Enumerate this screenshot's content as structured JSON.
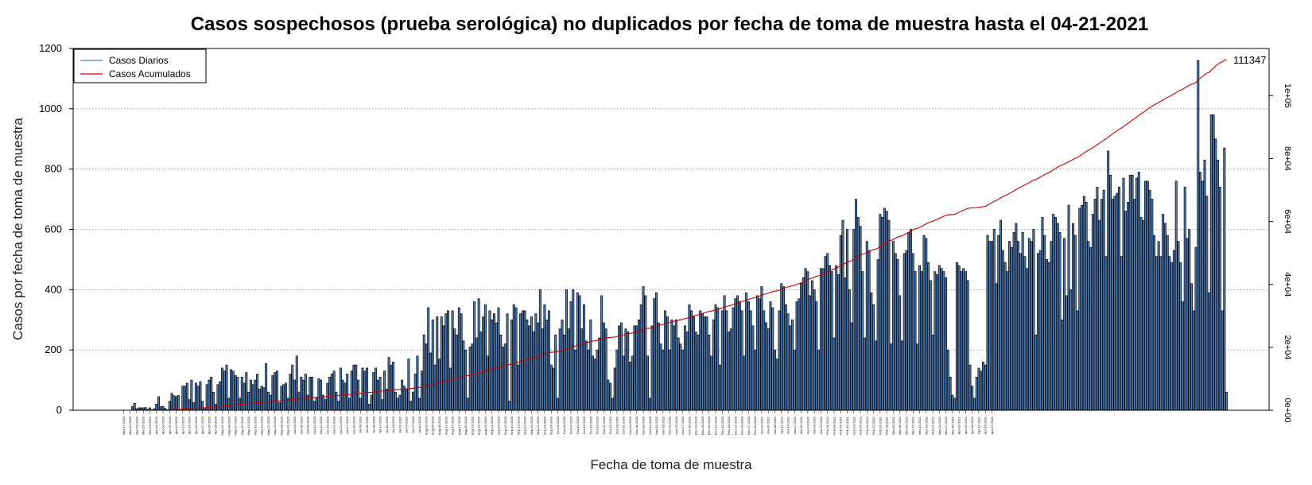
{
  "chart_data": {
    "type": "bar",
    "title": "Casos sospechosos (prueba serológica) no duplicados por fecha de toma de muestra hasta el 04-21-2021",
    "xlabel": "Fecha de toma de muestra",
    "ylabel": "Casos por fecha de toma de muestra",
    "ylim": [
      0,
      1200
    ],
    "yticks": [
      "0",
      "200",
      "400",
      "600",
      "800",
      "1000",
      "1200"
    ],
    "ylim_right": [
      0,
      115000
    ],
    "yticks_right": [
      "0e+00",
      "2e+04",
      "4e+04",
      "6e+04",
      "8e+04",
      "1e+05"
    ],
    "grid": "horizontal dotted",
    "legend_position": "top-left",
    "x_start": "2020-03-17",
    "x_end": "2021-04-19",
    "x_tick_labels": [
      "Mar-17-2020",
      "Mar-20-2020",
      "Mar-23-2020",
      "Mar-26-2020",
      "Mar-29-2020",
      "Apr-01-2020",
      "Apr-04-2020",
      "Apr-07-2020",
      "Apr-10-2020",
      "Apr-13-2020",
      "Apr-16-2020",
      "Apr-19-2020",
      "Apr-22-2020",
      "Apr-25-2020",
      "Apr-28-2020",
      "May-01-2020",
      "May-04-2020",
      "May-07-2020",
      "May-10-2020",
      "May-13-2020",
      "May-16-2020",
      "May-19-2020",
      "May-22-2020",
      "May-25-2020",
      "May-28-2020",
      "May-31-2020",
      "Jun-03-2020",
      "Jun-06-2020",
      "Jun-09-2020",
      "Jun-12-2020",
      "Jun-15-2020",
      "Jun-18-2020",
      "Jun-21-2020",
      "Jun-24-2020",
      "Jun-27-2020",
      "Jun-30-2020",
      "Jul-03-2020",
      "Jul-06-2020",
      "Jul-09-2020",
      "Jul-12-2020",
      "Jul-15-2020",
      "Jul-18-2020",
      "Jul-21-2020",
      "Jul-24-2020",
      "Jul-27-2020",
      "Jul-30-2020",
      "Aug-02-2020",
      "Aug-05-2020",
      "Aug-08-2020",
      "Aug-11-2020",
      "Aug-14-2020",
      "Aug-17-2020",
      "Aug-20-2020",
      "Aug-23-2020",
      "Aug-26-2020",
      "Aug-29-2020",
      "Sep-01-2020",
      "Sep-04-2020",
      "Sep-07-2020",
      "Sep-10-2020",
      "Sep-13-2020",
      "Sep-16-2020",
      "Sep-19-2020",
      "Sep-22-2020",
      "Sep-25-2020",
      "Sep-28-2020",
      "Oct-01-2020",
      "Oct-04-2020",
      "Oct-07-2020",
      "Oct-10-2020",
      "Oct-13-2020",
      "Oct-16-2020",
      "Oct-19-2020",
      "Oct-22-2020",
      "Oct-25-2020",
      "Oct-28-2020",
      "Oct-31-2020",
      "Nov-03-2020",
      "Nov-06-2020",
      "Nov-09-2020",
      "Nov-12-2020",
      "Nov-15-2020",
      "Nov-18-2020",
      "Nov-21-2020",
      "Nov-24-2020",
      "Nov-27-2020",
      "Nov-30-2020",
      "Dec-03-2020",
      "Dec-06-2020",
      "Dec-09-2020",
      "Dec-12-2020",
      "Dec-15-2020",
      "Dec-18-2020",
      "Dec-21-2020",
      "Dec-24-2020",
      "Dec-27-2020",
      "Dec-30-2020",
      "Jan-02-2021",
      "Jan-05-2021",
      "Jan-08-2021",
      "Jan-11-2021",
      "Jan-14-2021",
      "Jan-17-2021",
      "Jan-20-2021",
      "Jan-23-2021",
      "Jan-26-2021",
      "Jan-29-2021",
      "Feb-01-2021",
      "Feb-04-2021",
      "Feb-07-2021",
      "Feb-10-2021",
      "Feb-13-2021",
      "Feb-16-2021",
      "Feb-19-2021",
      "Feb-22-2021",
      "Feb-25-2021",
      "Feb-28-2021",
      "Mar-03-2021",
      "Mar-06-2021",
      "Mar-09-2021",
      "Mar-12-2021",
      "Mar-15-2021",
      "Mar-18-2021",
      "Mar-21-2021",
      "Mar-24-2021",
      "Mar-27-2021",
      "Mar-30-2021",
      "Apr-02-2021",
      "Apr-05-2021",
      "Apr-08-2021",
      "Apr-11-2021",
      "Apr-14-2021",
      "Apr-17-2021"
    ],
    "series": [
      {
        "name": "Casos Diarios",
        "kind": "bar",
        "color": "#4f81bd",
        "edge_color": "#000000",
        "values": [
          0,
          0,
          0,
          0,
          12,
          23,
          5,
          8,
          8,
          8,
          9,
          3,
          8,
          2,
          5,
          20,
          45,
          12,
          13,
          6,
          1,
          30,
          56,
          48,
          45,
          49,
          0,
          80,
          80,
          90,
          35,
          100,
          25,
          90,
          80,
          95,
          30,
          5,
          85,
          100,
          110,
          60,
          20,
          85,
          95,
          140,
          130,
          150,
          40,
          135,
          130,
          115,
          110,
          40,
          110,
          90,
          125,
          60,
          100,
          85,
          100,
          120,
          70,
          80,
          75,
          155,
          60,
          50,
          115,
          125,
          130,
          25,
          80,
          85,
          90,
          40,
          120,
          150,
          100,
          180,
          60,
          110,
          100,
          120,
          50,
          110,
          110,
          30,
          40,
          105,
          100,
          50,
          35,
          90,
          110,
          120,
          130,
          60,
          30,
          140,
          100,
          90,
          120,
          40,
          130,
          150,
          150,
          100,
          40,
          140,
          130,
          140,
          20,
          50,
          125,
          140,
          100,
          110,
          35,
          130,
          70,
          175,
          150,
          160,
          60,
          40,
          50,
          100,
          80,
          70,
          170,
          30,
          60,
          120,
          180,
          40,
          130,
          250,
          220,
          340,
          190,
          300,
          150,
          310,
          170,
          310,
          280,
          320,
          330,
          140,
          330,
          270,
          250,
          340,
          320,
          230,
          200,
          40,
          210,
          220,
          360,
          240,
          370,
          260,
          310,
          350,
          180,
          330,
          300,
          320,
          290,
          340,
          250,
          210,
          220,
          320,
          30,
          300,
          350,
          340,
          150,
          320,
          330,
          330,
          300,
          280,
          310,
          260,
          320,
          290,
          400,
          270,
          350,
          300,
          330,
          150,
          140,
          250,
          40,
          270,
          300,
          250,
          400,
          270,
          360,
          400,
          200,
          390,
          380,
          270,
          350,
          230,
          200,
          300,
          180,
          170,
          200,
          240,
          380,
          290,
          270,
          100,
          90,
          40,
          140,
          200,
          280,
          290,
          180,
          270,
          260,
          160,
          180,
          280,
          280,
          300,
          350,
          410,
          380,
          180,
          40,
          280,
          370,
          390,
          290,
          220,
          200,
          330,
          310,
          200,
          300,
          280,
          300,
          240,
          220,
          200,
          280,
          260,
          350,
          330,
          310,
          260,
          250,
          330,
          320,
          310,
          310,
          250,
          180,
          300,
          350,
          340,
          150,
          330,
          380,
          330,
          260,
          270,
          340,
          370,
          380,
          360,
          330,
          180,
          390,
          360,
          330,
          280,
          200,
          380,
          370,
          410,
          330,
          290,
          270,
          360,
          340,
          200,
          170,
          330,
          420,
          410,
          350,
          320,
          280,
          300,
          200,
          360,
          370,
          420,
          440,
          470,
          460,
          380,
          430,
          400,
          360,
          200,
          470,
          470,
          510,
          520,
          480,
          460,
          240,
          480,
          450,
          580,
          630,
          440,
          600,
          400,
          290,
          600,
          700,
          640,
          610,
          460,
          240,
          560,
          530,
          390,
          350,
          230,
          500,
          650,
          640,
          670,
          660,
          630,
          220,
          560,
          520,
          500,
          380,
          230,
          520,
          530,
          590,
          600,
          520,
          460,
          220,
          480,
          460,
          580,
          570,
          490,
          430,
          250,
          460,
          450,
          480,
          470,
          460,
          440,
          200,
          110,
          50,
          40,
          490,
          480,
          460,
          470,
          460,
          430,
          150,
          80,
          40,
          110,
          140,
          130,
          160,
          150,
          580,
          560,
          560,
          600,
          420,
          580,
          630,
          530,
          490,
          460,
          560,
          540,
          590,
          620,
          560,
          520,
          590,
          510,
          470,
          570,
          560,
          600,
          250,
          520,
          530,
          640,
          580,
          500,
          490,
          560,
          650,
          640,
          620,
          590,
          300,
          570,
          380,
          680,
          400,
          620,
          580,
          330,
          670,
          680,
          710,
          690,
          560,
          540,
          650,
          700,
          740,
          630,
          700,
          730,
          510,
          860,
          780,
          700,
          710,
          720,
          740,
          510,
          770,
          660,
          690,
          780,
          780,
          700,
          770,
          790,
          640,
          630,
          760,
          760,
          730,
          700,
          580,
          510,
          560,
          510,
          650,
          620,
          580,
          510,
          490,
          530,
          760,
          560,
          490,
          360,
          740,
          570,
          600,
          420,
          330,
          540,
          1160,
          790,
          760,
          830,
          710,
          390,
          980,
          980,
          900,
          830,
          740,
          330,
          870,
          60
        ]
      },
      {
        "name": "Casos Acumulados",
        "kind": "line",
        "color": "#cc0000",
        "axis": "right",
        "final_value": 111347
      }
    ],
    "end_label": "111347"
  }
}
